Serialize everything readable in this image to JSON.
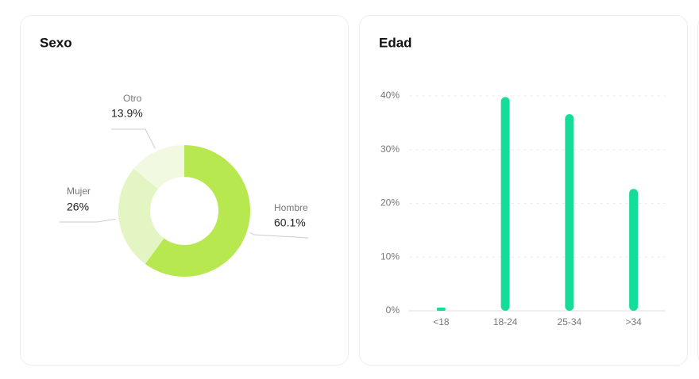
{
  "chart_data": [
    {
      "type": "donut",
      "title": "Sexo",
      "categories": [
        "Hombre",
        "Mujer",
        "Otro"
      ],
      "values": [
        60.1,
        26,
        13.9
      ],
      "value_labels": [
        "60.1%",
        "26%",
        "13.9%"
      ],
      "colors": [
        "#b8e84f",
        "#e2f5c2",
        "#f1f9e1"
      ]
    },
    {
      "type": "bar",
      "title": "Edad",
      "categories": [
        "<18",
        "18-24",
        "25-34",
        ">34"
      ],
      "values": [
        0.6,
        39.8,
        36.6,
        22.7
      ],
      "color": "#14dd9a",
      "ylim": [
        0,
        40
      ],
      "yticks": [
        {
          "value": 0,
          "label": "0%"
        },
        {
          "value": 10,
          "label": "10%"
        },
        {
          "value": 20,
          "label": "20%"
        },
        {
          "value": 30,
          "label": "30%"
        },
        {
          "value": 40,
          "label": "40%"
        }
      ],
      "grid": true
    }
  ]
}
